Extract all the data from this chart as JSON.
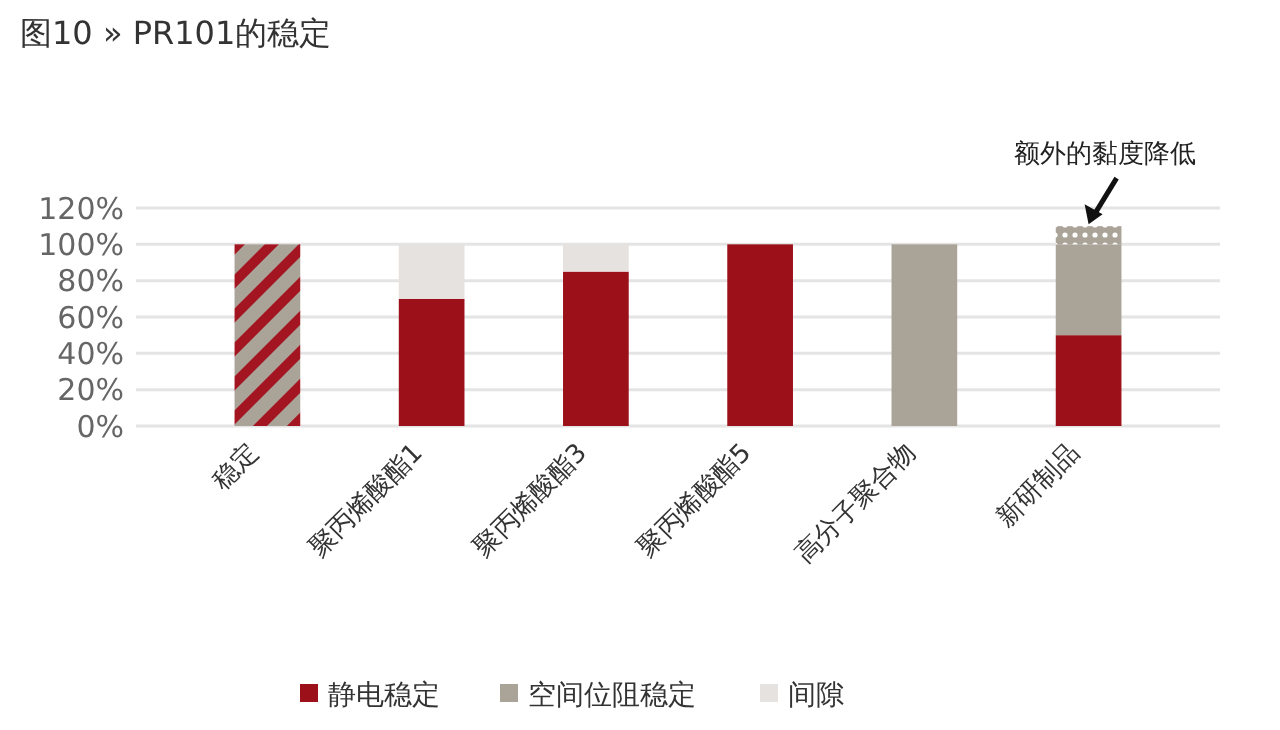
{
  "chart_data": {
    "type": "bar",
    "title": "图10 » PR101的稳定",
    "stacked": true,
    "categories": [
      "稳定",
      "聚丙烯酸酯1",
      "聚丙烯酸酯3",
      "聚丙烯酸酯5",
      "高分子聚合物",
      "新研制品"
    ],
    "series": [
      {
        "color": "#a31621",
        "values": [
          100,
          null,
          null,
          null,
          null,
          null
        ]
      },
      {
        "name": "静电稳定",
        "color": "#9c1119",
        "values": [
          null,
          70,
          85,
          100,
          null,
          50
        ]
      },
      {
        "name": "空间位阻稳定",
        "color": "#aaa397",
        "values": [
          null,
          null,
          null,
          null,
          100,
          50
        ]
      },
      {
        "name": "间隙",
        "color": "#e6e2df",
        "values": [
          null,
          30,
          15,
          null,
          null,
          null
        ]
      },
      {
        "color": "#aaa397",
        "values": [
          null,
          null,
          null,
          null,
          null,
          10
        ]
      }
    ],
    "ylim": [
      0,
      120
    ],
    "yticks": [
      {
        "value": 0,
        "label": "0%"
      },
      {
        "value": 20,
        "label": "20%"
      },
      {
        "value": 40,
        "label": "40%"
      },
      {
        "value": 60,
        "label": "60%"
      },
      {
        "value": 80,
        "label": "80%"
      },
      {
        "value": 100,
        "label": "100%"
      },
      {
        "value": 120,
        "label": "120%"
      }
    ],
    "grid": "y",
    "legend": "bottom",
    "annotations": [
      {
        "text": "额外的黏度降低",
        "x": "新研制品",
        "y": 110
      }
    ]
  }
}
